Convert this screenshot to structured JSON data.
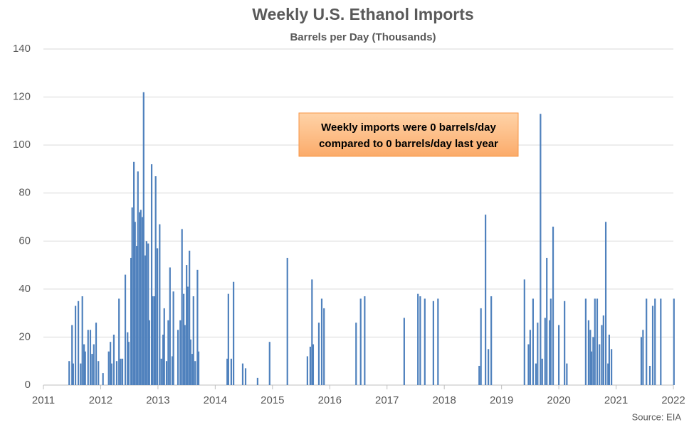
{
  "chart_data": {
    "type": "bar",
    "title": "Weekly U.S. Ethanol Imports",
    "subtitle": "Barrels per Day (Thousands)",
    "annotation": [
      "Weekly imports were 0 barrels/day",
      "compared to 0 barrels/day last year"
    ],
    "source": "Source: EIA",
    "color": "#4f81bd",
    "grid": true,
    "xlim": [
      2011,
      2022
    ],
    "xticks": [
      2011,
      2012,
      2013,
      2014,
      2015,
      2016,
      2017,
      2018,
      2019,
      2020,
      2021,
      2022
    ],
    "ylim": [
      0,
      140
    ],
    "yticks": [
      0,
      20,
      40,
      60,
      80,
      100,
      120,
      140
    ],
    "x": [
      2011.45,
      2011.5,
      2011.52,
      2011.56,
      2011.61,
      2011.65,
      2011.68,
      2011.71,
      2011.73,
      2011.78,
      2011.82,
      2011.85,
      2011.88,
      2011.92,
      2011.96,
      2012.04,
      2012.14,
      2012.17,
      2012.19,
      2012.23,
      2012.28,
      2012.32,
      2012.35,
      2012.38,
      2012.43,
      2012.47,
      2012.49,
      2012.53,
      2012.55,
      2012.58,
      2012.6,
      2012.63,
      2012.65,
      2012.68,
      2012.7,
      2012.73,
      2012.75,
      2012.78,
      2012.8,
      2012.83,
      2012.85,
      2012.89,
      2012.91,
      2012.94,
      2012.96,
      2012.99,
      2013.03,
      2013.06,
      2013.09,
      2013.11,
      2013.15,
      2013.18,
      2013.21,
      2013.25,
      2013.27,
      2013.35,
      2013.39,
      2013.42,
      2013.45,
      2013.47,
      2013.5,
      2013.52,
      2013.55,
      2013.57,
      2013.6,
      2013.62,
      2013.65,
      2013.69,
      2013.71,
      2014.21,
      2014.23,
      2014.28,
      2014.32,
      2014.48,
      2014.53,
      2014.74,
      2014.95,
      2015.26,
      2015.61,
      2015.66,
      2015.69,
      2015.71,
      2015.81,
      2015.86,
      2015.9,
      2016.46,
      2016.54,
      2016.61,
      2017.3,
      2017.54,
      2017.58,
      2017.66,
      2017.81,
      2017.89,
      2018.61,
      2018.64,
      2018.72,
      2018.77,
      2018.82,
      2019.4,
      2019.47,
      2019.5,
      2019.55,
      2019.6,
      2019.63,
      2019.68,
      2019.71,
      2019.76,
      2019.79,
      2019.84,
      2019.86,
      2019.9,
      2020.0,
      2020.1,
      2020.14,
      2020.47,
      2020.52,
      2020.55,
      2020.57,
      2020.6,
      2020.63,
      2020.67,
      2020.71,
      2020.75,
      2020.78,
      2020.82,
      2020.86,
      2020.88,
      2020.92,
      2021.44,
      2021.47,
      2021.53,
      2021.59,
      2021.64,
      2021.68,
      2021.78,
      2022.01
    ],
    "values": [
      10,
      25,
      9,
      33,
      35,
      9,
      37,
      17,
      14,
      23,
      23,
      13,
      17,
      26,
      10,
      5,
      14,
      18,
      9,
      21,
      10,
      36,
      11,
      11,
      46,
      22,
      18,
      53,
      74,
      93,
      68,
      58,
      89,
      72,
      73,
      70,
      122,
      54,
      60,
      59,
      27,
      92,
      37,
      37,
      87,
      57,
      67,
      11,
      21,
      32,
      10,
      27,
      49,
      12,
      39,
      23,
      27,
      65,
      38,
      25,
      50,
      41,
      56,
      19,
      13,
      37,
      10,
      48,
      14,
      11,
      38,
      11,
      43,
      9,
      7,
      3,
      18,
      53,
      12,
      16,
      44,
      17,
      26,
      36,
      32,
      26,
      36,
      37,
      28,
      38,
      37,
      36,
      35,
      36,
      8,
      32,
      71,
      15,
      37,
      44,
      17,
      23,
      36,
      9,
      26,
      113,
      11,
      28,
      53,
      27,
      36,
      66,
      25,
      35,
      9,
      36,
      27,
      23,
      14,
      20,
      36,
      36,
      17,
      25,
      29,
      68,
      9,
      21,
      15,
      20,
      23,
      36,
      8,
      33,
      36,
      36,
      36
    ]
  }
}
